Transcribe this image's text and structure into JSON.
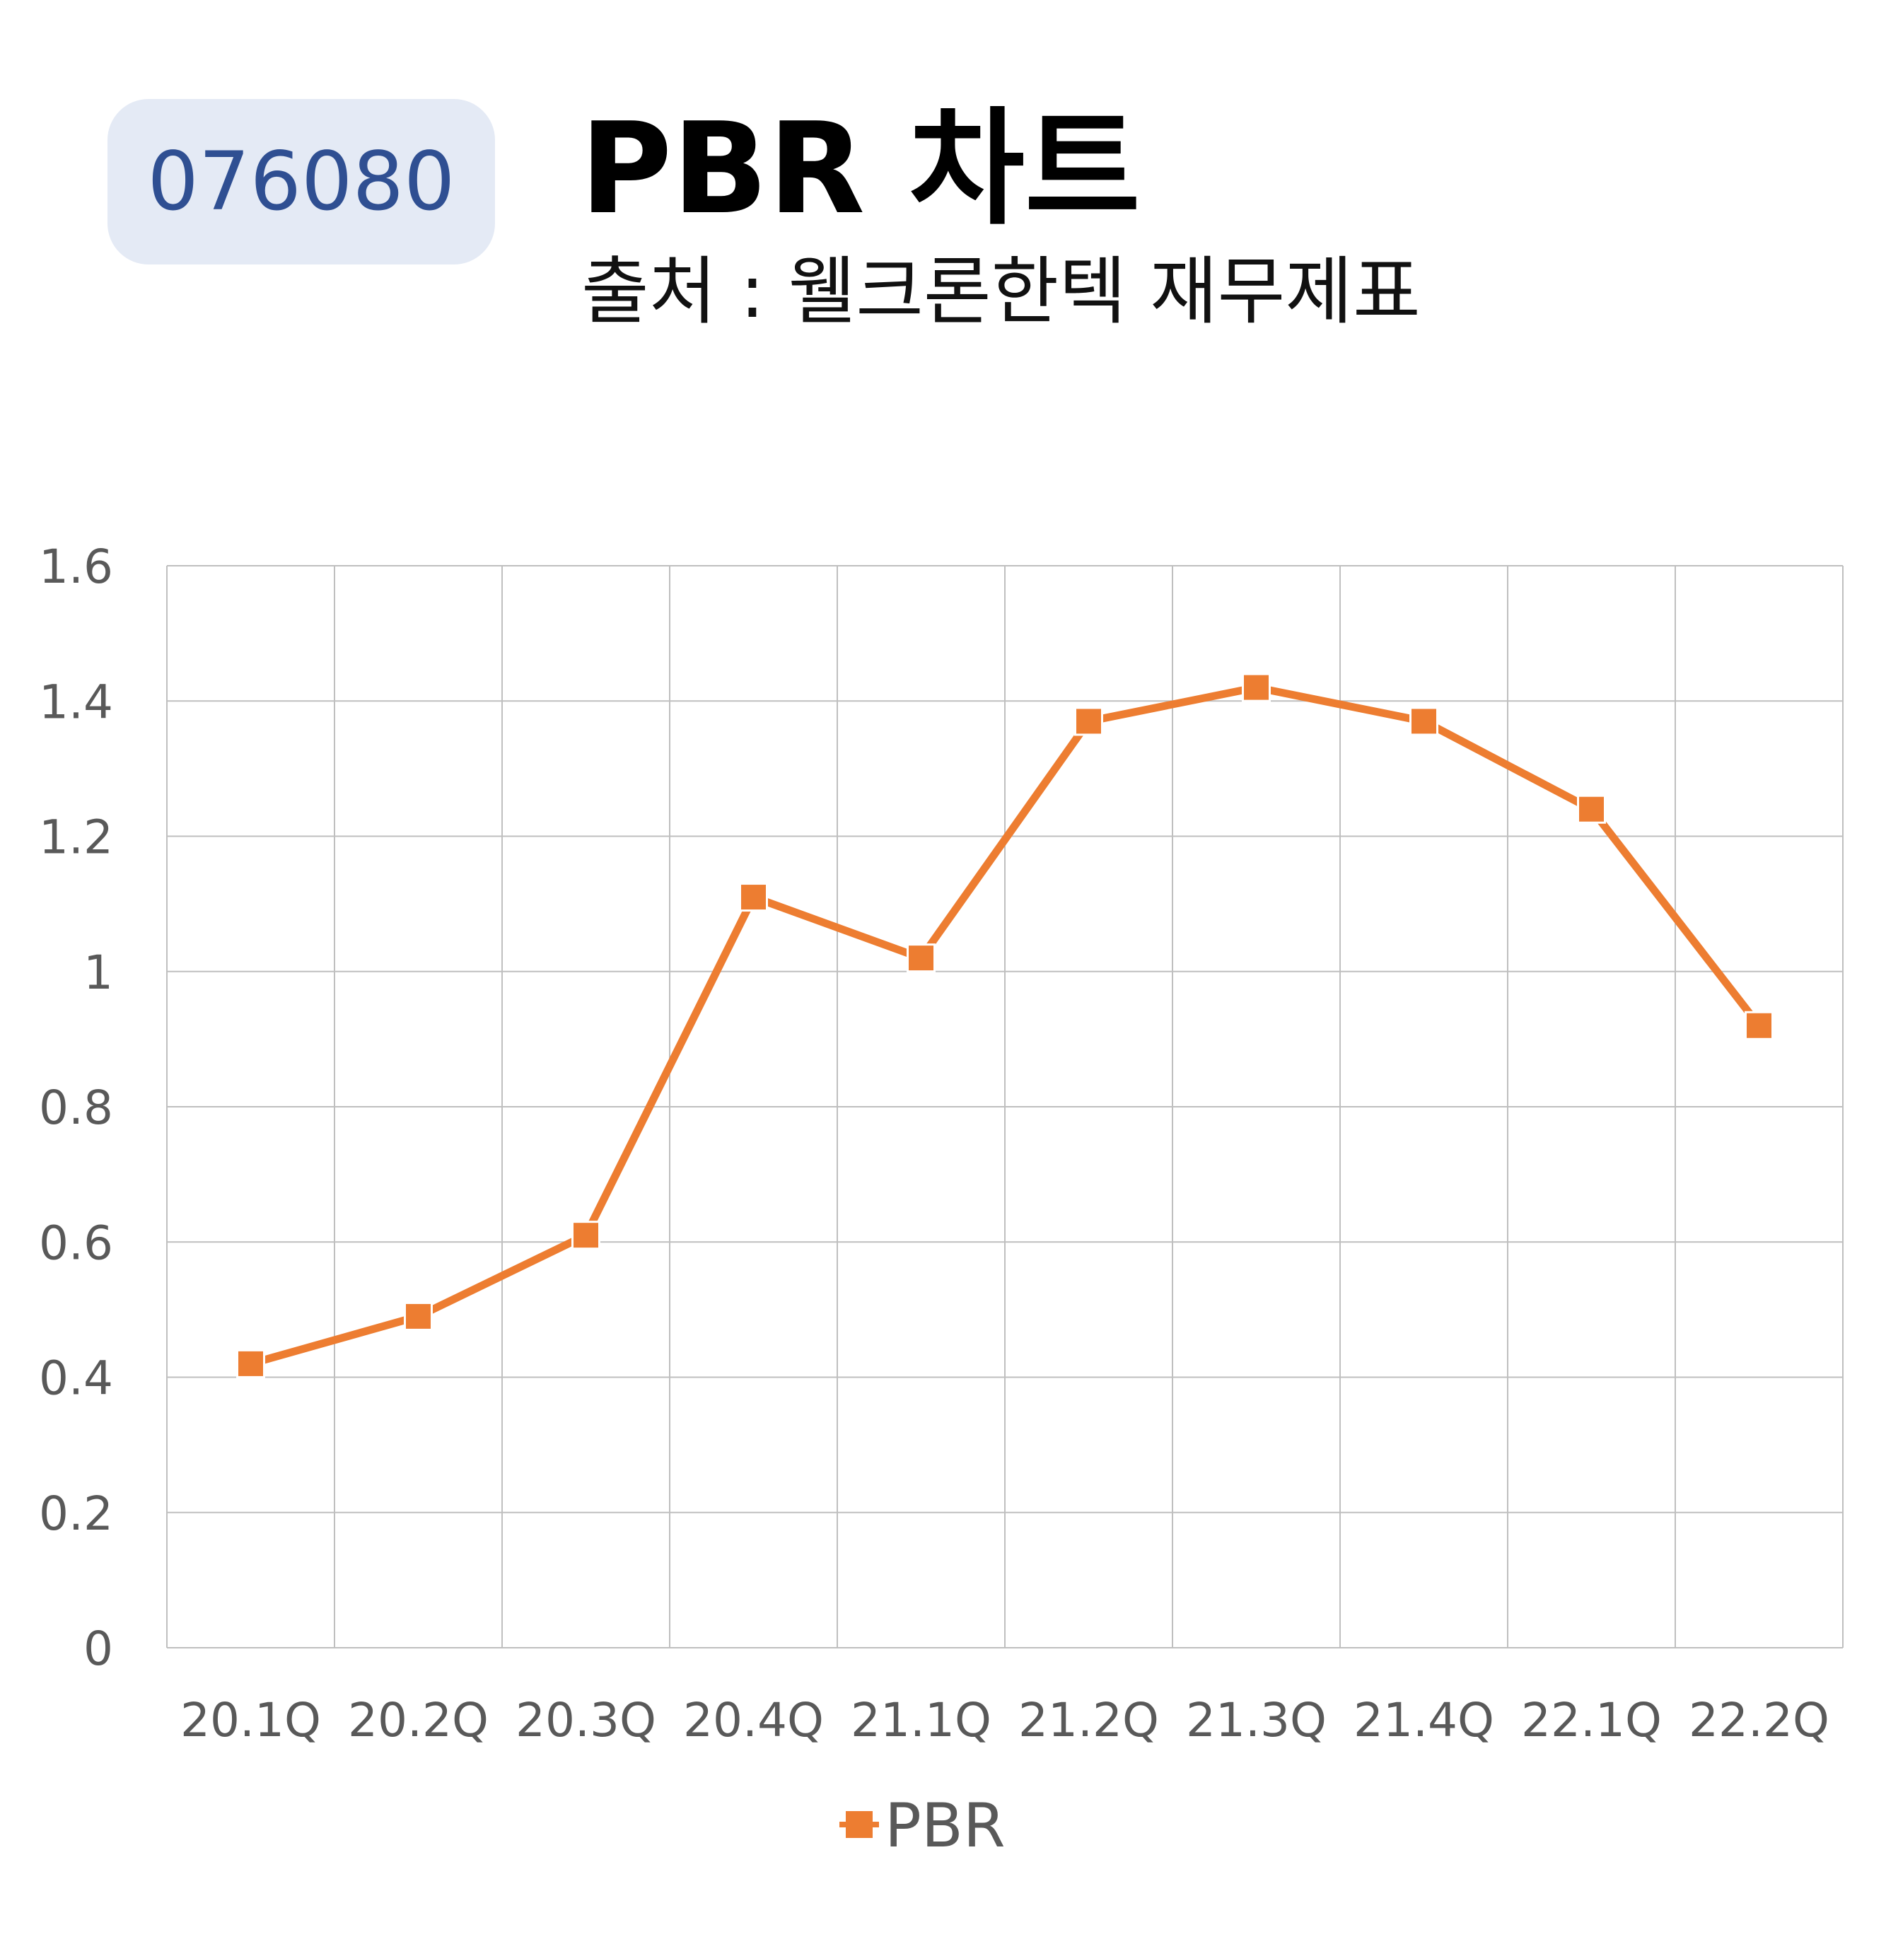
{
  "header": {
    "code": "076080",
    "title": "PBR 차트",
    "subtitle": "출처 : 웰크론한텍 재무제표"
  },
  "colors": {
    "series": "#ed7d31",
    "badge_bg": "#e4eaf5",
    "badge_text": "#2f4f92",
    "grid": "#bfbfbf",
    "tick_text": "#595959"
  },
  "chart_data": {
    "type": "line",
    "categories": [
      "20.1Q",
      "20.2Q",
      "20.3Q",
      "20.4Q",
      "21.1Q",
      "21.2Q",
      "21.3Q",
      "21.4Q",
      "22.1Q",
      "22.2Q"
    ],
    "series": [
      {
        "name": "PBR",
        "values": [
          0.42,
          0.49,
          0.61,
          1.11,
          1.02,
          1.37,
          1.42,
          1.37,
          1.24,
          0.92
        ],
        "marker": "square"
      }
    ],
    "yticks": [
      "0",
      "0.2",
      "0.4",
      "0.6",
      "0.8",
      "1",
      "1.2",
      "1.4",
      "1.6"
    ],
    "ylim": [
      0,
      1.6
    ],
    "grid": true,
    "legend": "bottom"
  }
}
